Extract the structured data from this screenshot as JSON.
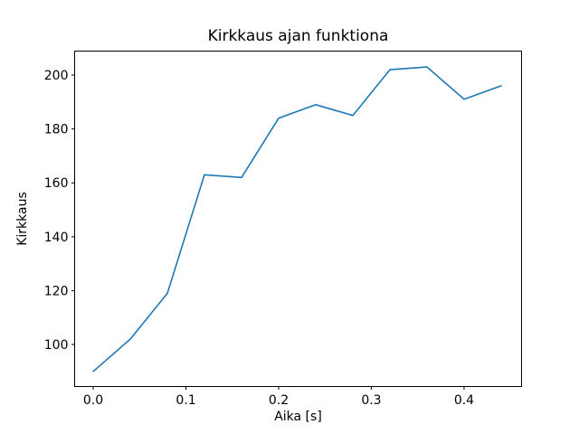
{
  "chart_data": {
    "type": "line",
    "title": "Kirkkaus ajan funktiona",
    "xlabel": "Aika [s]",
    "ylabel": "Kirkkaus",
    "x": [
      0.0,
      0.04,
      0.08,
      0.12,
      0.16,
      0.2,
      0.24,
      0.28,
      0.32,
      0.36,
      0.4,
      0.44
    ],
    "y": [
      90,
      102,
      119,
      163,
      162,
      184,
      189,
      185,
      202,
      203,
      191,
      196
    ],
    "xlim": [
      -0.02,
      0.462
    ],
    "ylim": [
      84.4,
      208.9
    ],
    "x_ticks": [
      {
        "value": 0.0,
        "label": "0.0"
      },
      {
        "value": 0.1,
        "label": "0.1"
      },
      {
        "value": 0.2,
        "label": "0.2"
      },
      {
        "value": 0.3,
        "label": "0.3"
      },
      {
        "value": 0.4,
        "label": "0.4"
      }
    ],
    "y_ticks": [
      {
        "value": 100,
        "label": "100"
      },
      {
        "value": 120,
        "label": "120"
      },
      {
        "value": 140,
        "label": "140"
      },
      {
        "value": 160,
        "label": "160"
      },
      {
        "value": 180,
        "label": "180"
      },
      {
        "value": 200,
        "label": "200"
      }
    ],
    "line_color": "#1f77b4",
    "frame_color": "#000000",
    "grid": false,
    "legend_position": "none"
  }
}
